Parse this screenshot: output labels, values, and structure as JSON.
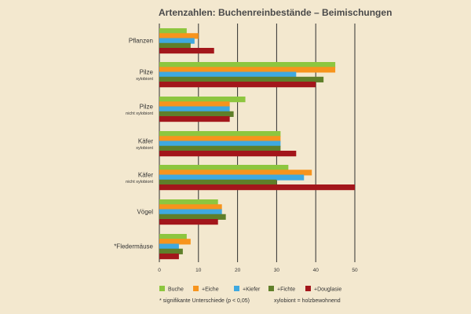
{
  "chart_data": {
    "type": "bar",
    "orientation": "horizontal",
    "title": "Artenzahlen: Buchenreinbestände – Beimischungen",
    "categories": [
      {
        "label": "Pflanzen",
        "sub": ""
      },
      {
        "label": "Pilze",
        "sub": "xylobiont"
      },
      {
        "label": "Pilze",
        "sub": "nicht xylobiont"
      },
      {
        "label": "Käfer",
        "sub": "xylobiont"
      },
      {
        "label": "Käfer",
        "sub": "nicht xylobiont"
      },
      {
        "label": "Vögel",
        "sub": ""
      },
      {
        "label": "*Fledermäuse",
        "sub": ""
      }
    ],
    "series": [
      {
        "name": "Buche",
        "color": "#8dc63f",
        "values": [
          7,
          45,
          22,
          31,
          33,
          15,
          7
        ]
      },
      {
        "name": "+Eiche",
        "color": "#f7941d",
        "values": [
          10,
          45,
          18,
          31,
          39,
          16,
          8
        ]
      },
      {
        "name": "+Kiefer",
        "color": "#3fa9e0",
        "values": [
          9,
          35,
          18,
          31,
          37,
          16,
          5
        ]
      },
      {
        "name": "+Fichte",
        "color": "#5f7f2a",
        "values": [
          8,
          42,
          19,
          31,
          30,
          17,
          6
        ]
      },
      {
        "name": "+Douglasie",
        "color": "#a3161b",
        "values": [
          14,
          40,
          18,
          35,
          50,
          15,
          5
        ]
      }
    ],
    "xlim": [
      0,
      50
    ],
    "xticks": [
      0,
      10,
      20,
      30,
      40,
      50
    ],
    "grid": true,
    "legend_placement": "bottom"
  },
  "footnote": "* signifikante Unterschiede (p < 0,05)",
  "definition": "xylobiont = holzbewohnend"
}
